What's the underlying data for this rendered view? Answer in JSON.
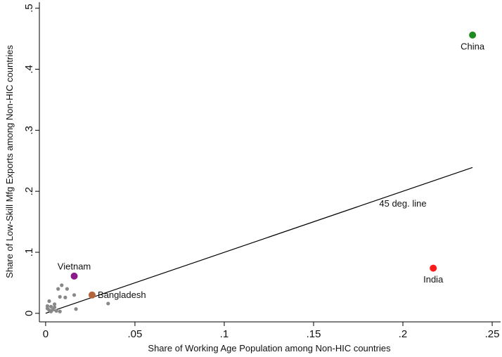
{
  "chart_data": {
    "type": "scatter",
    "x_label": "Share of Working Age Population among Non-HIC countries",
    "y_label": "Share of Low-Skill Mfg Exports among Non-HIC countries",
    "xlim": [
      -0.0035,
      0.2547
    ],
    "ylim": [
      -0.014,
      0.51
    ],
    "xticks": [
      0,
      {
        "value": 0.05,
        "label": ".05"
      },
      {
        "value": 0.1,
        "label": ".1"
      },
      {
        "value": 0.15,
        "label": ".15"
      },
      {
        "value": 0.2,
        "label": ".2"
      },
      {
        "value": 0.25,
        "label": ".25"
      }
    ],
    "yticks": [
      0,
      {
        "value": 0.1,
        "label": ".1"
      },
      {
        "value": 0.2,
        "label": ".2"
      },
      {
        "value": 0.3,
        "label": ".3"
      },
      {
        "value": 0.4,
        "label": ".4"
      },
      {
        "value": 0.5,
        "label": ".5"
      }
    ],
    "points": [
      {
        "label": "China",
        "x": 0.239,
        "y": 0.456,
        "color": "#1f8a1f",
        "label_position": "below"
      },
      {
        "label": "India",
        "x": 0.217,
        "y": 0.074,
        "color": "#ff1a1a",
        "label_position": "below"
      },
      {
        "label": "Vietnam",
        "x": 0.016,
        "y": 0.061,
        "color": "#8b1a8b",
        "label_position": "above"
      },
      {
        "label": "Bangladesh",
        "x": 0.026,
        "y": 0.03,
        "color": "#b5653a",
        "label_position": "right"
      }
    ],
    "other_points": {
      "color": "#888888",
      "x": [
        0.035,
        0.017,
        0.016,
        0.012,
        0.009,
        0.011,
        0.007,
        0.008,
        0.005,
        0.002,
        0.003,
        0.001,
        0.002,
        0.004,
        0.006,
        0.008,
        0.001,
        0.003,
        0.005
      ],
      "values": [
        0.016,
        0.007,
        0.03,
        0.04,
        0.046,
        0.026,
        0.04,
        0.027,
        0.015,
        0.02,
        0.011,
        0.008,
        0.005,
        0.006,
        0.004,
        0.003,
        0.012,
        0.003,
        0.01
      ]
    },
    "reference_line": {
      "label": "45 deg. line",
      "x": [
        0,
        0.239
      ],
      "values": [
        0,
        0.239
      ]
    }
  }
}
